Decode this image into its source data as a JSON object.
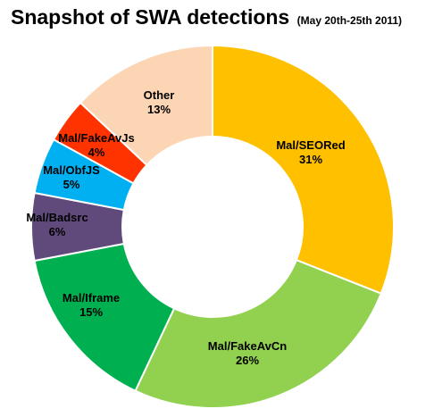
{
  "chart_data": {
    "type": "pie",
    "title": "Snapshot of SWA detections",
    "subtitle": "(May 20th-25th 2011)",
    "slices": [
      {
        "label": "Mal/SEORed",
        "value": 31,
        "pct_label": "31%",
        "color": "#FFC000"
      },
      {
        "label": "Mal/FakeAvCn",
        "value": 26,
        "pct_label": "26%",
        "color": "#92D050"
      },
      {
        "label": "Mal/Iframe",
        "value": 15,
        "pct_label": "15%",
        "color": "#00B050"
      },
      {
        "label": "Mal/Badsrc",
        "value": 6,
        "pct_label": "6%",
        "color": "#604A7B"
      },
      {
        "label": "Mal/ObfJS",
        "value": 5,
        "pct_label": "5%",
        "color": "#00B0F0"
      },
      {
        "label": "Mal/FakeAvJs",
        "value": 4,
        "pct_label": "4%",
        "color": "#FF3300"
      },
      {
        "label": "Other",
        "value": 13,
        "pct_label": "13%",
        "color": "#FCD5B5"
      }
    ]
  }
}
